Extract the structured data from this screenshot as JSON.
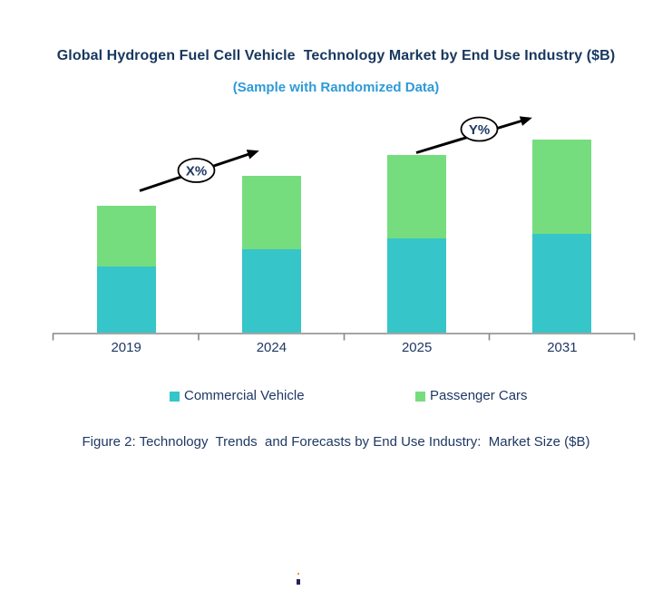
{
  "title": "Global Hydrogen Fuel Cell Vehicle  Technology Market by End Use Industry ($B)",
  "subtitle": "(Sample with Randomized Data)",
  "caption": "Figure 2: Technology  Trends  and Forecasts by End Use Industry:  Market Size ($B)",
  "annotations": {
    "x_label": "X%",
    "y_label": "Y%"
  },
  "legend": [
    {
      "label": "Commercial Vehicle",
      "color": "#36C5C8"
    },
    {
      "label": "Passenger Cars",
      "color": "#76DD7E"
    }
  ],
  "colors": {
    "title_navy": "#17375E",
    "subtitle_blue": "#2E9AD8",
    "label_navy": "#1F3864",
    "teal": "#36C5C8",
    "green": "#76DD7E",
    "axis_gray": "#878787",
    "arrow_black": "#000000"
  },
  "chart_data": {
    "type": "bar",
    "stacked": true,
    "title": "Global Hydrogen Fuel Cell Vehicle Technology Market by End Use Industry ($B)",
    "subtitle": "(Sample with Randomized Data)",
    "categories": [
      "2019",
      "2024",
      "2025",
      "2031"
    ],
    "series": [
      {
        "name": "Commercial Vehicle",
        "color": "#36C5C8",
        "values": [
          73,
          92,
          104,
          109
        ]
      },
      {
        "name": "Passenger Cars",
        "color": "#76DD7E",
        "values": [
          67,
          81,
          92,
          104
        ]
      }
    ],
    "totals": [
      140,
      173,
      196,
      213
    ],
    "units": "relative units (randomized sample; no value axis shown)",
    "xlabel": "",
    "ylabel": "",
    "ylim": [
      0,
      250
    ],
    "grid": false,
    "y_axis_shown": false,
    "legend_position": "bottom",
    "annotations": [
      {
        "text": "X%",
        "type": "growth-arrow",
        "between": [
          "2019",
          "2024"
        ]
      },
      {
        "text": "Y%",
        "type": "growth-arrow",
        "between": [
          "2025",
          "2031"
        ]
      }
    ]
  }
}
